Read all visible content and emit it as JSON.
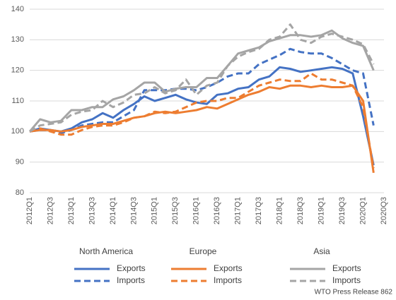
{
  "chart_data": {
    "type": "line",
    "categories": [
      "2012Q1",
      null,
      "2012Q3",
      null,
      "2013Q1",
      null,
      "2013Q3",
      null,
      "2014Q1",
      null,
      "2014Q3",
      null,
      "2015Q1",
      null,
      "2015Q3",
      null,
      "2016Q1",
      null,
      "2016Q3",
      null,
      "2017Q1",
      null,
      "2017Q3",
      null,
      "2018Q1",
      null,
      "2018Q3",
      null,
      "2019Q1",
      null,
      "2019Q3",
      null,
      "2020Q1",
      null,
      "2020Q3"
    ],
    "ylim": [
      80,
      140
    ],
    "yticks": [
      80,
      90,
      100,
      110,
      120,
      130,
      140
    ],
    "grid": true,
    "legend_groups": [
      "North America",
      "Europe",
      "Asia"
    ],
    "series": [
      {
        "name": "Exports",
        "color": "#4472c4",
        "dashed": false,
        "values": [
          100,
          101,
          100.5,
          100,
          101,
          103,
          104,
          106,
          104.5,
          107,
          109,
          111.5,
          110,
          111,
          112,
          110.5,
          109.5,
          109,
          112,
          112.5,
          114,
          114.5,
          117,
          118,
          121,
          120.5,
          119.5,
          120,
          120.5,
          121,
          120.5,
          119,
          105,
          89,
          null
        ]
      },
      {
        "name": "Imports",
        "color": "#4472c4",
        "dashed": true,
        "values": [
          100,
          100.5,
          100.5,
          99.5,
          100.5,
          102,
          102.5,
          103,
          103,
          105,
          107,
          113.5,
          113.5,
          113.5,
          114,
          114,
          113.5,
          114.5,
          116,
          118,
          119,
          119,
          122,
          123.5,
          125,
          127,
          126,
          125.5,
          125.5,
          124,
          122,
          120,
          119,
          102,
          null
        ]
      },
      {
        "name": "Exports",
        "color": "#ed7d31",
        "dashed": false,
        "values": [
          100,
          100.5,
          100.5,
          100,
          100.5,
          101.5,
          102,
          102.5,
          102.5,
          103.5,
          104.5,
          105,
          106,
          106.5,
          106,
          106.5,
          107,
          108,
          107.5,
          109,
          110.5,
          112,
          113,
          114.5,
          114,
          115,
          115,
          114.5,
          115,
          114.5,
          114.5,
          115,
          110,
          86.5,
          null
        ]
      },
      {
        "name": "Imports",
        "color": "#ed7d31",
        "dashed": true,
        "values": [
          100,
          101,
          100,
          99,
          99,
          100.5,
          101.5,
          102,
          102,
          103,
          104.5,
          105,
          106.5,
          106,
          106.5,
          108,
          109.5,
          110,
          110,
          111,
          111,
          113,
          115,
          116,
          117,
          116.5,
          116.5,
          119,
          117,
          117,
          116,
          115,
          108,
          88,
          null
        ]
      },
      {
        "name": "Exports",
        "color": "#a5a5a5",
        "dashed": false,
        "values": [
          100,
          104,
          103,
          103.5,
          107,
          107,
          108,
          108,
          110.5,
          111.5,
          113.5,
          116,
          116,
          113,
          114,
          114.5,
          114.5,
          117.5,
          117.5,
          121.5,
          125.5,
          126.5,
          127.5,
          129.5,
          130.5,
          131.5,
          131.5,
          131,
          131.5,
          133,
          130.5,
          129,
          128,
          120,
          null
        ]
      },
      {
        "name": "Imports",
        "color": "#a5a5a5",
        "dashed": true,
        "values": [
          100,
          102,
          102.5,
          103,
          105.5,
          106.5,
          107,
          110,
          108,
          109.5,
          112,
          112.5,
          114.5,
          112.5,
          113.5,
          117,
          112,
          115,
          116,
          121.5,
          124.5,
          126,
          127,
          130,
          131,
          135,
          130,
          129,
          131,
          132,
          131,
          130,
          128.5,
          122,
          null
        ]
      }
    ],
    "source": "WTO Press Release 862"
  }
}
